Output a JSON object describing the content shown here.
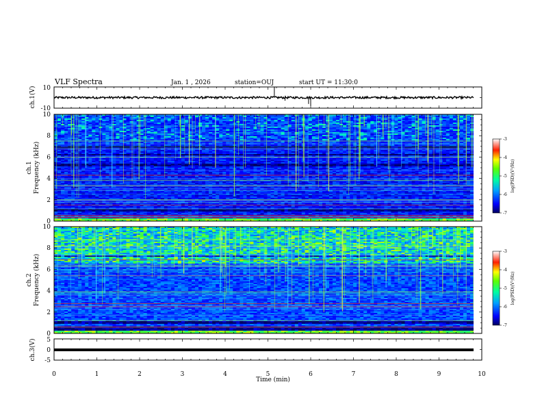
{
  "header": {
    "title": "VLF Spectra",
    "date": "Jan. 1 , 2026",
    "station": "station=OUJ",
    "start": "start UT = 11:30:0"
  },
  "chart_data": [
    {
      "type": "line",
      "name": "ch1-waveform",
      "ylabel": "ch.1(V)",
      "ylim": [
        -10,
        10
      ],
      "ytick_labels": [
        "10",
        "-10"
      ],
      "baseline": 0,
      "noise_amplitude": 1,
      "spikes": [
        {
          "t": 5.15,
          "value": 10
        },
        {
          "t": 5.4,
          "value": -3
        },
        {
          "t": 5.95,
          "value": -6
        },
        {
          "t": 6.0,
          "value": -8
        }
      ]
    },
    {
      "type": "heatmap",
      "name": "ch1-spectrogram",
      "ylabel_line1": "ch.1",
      "ylabel_line2": "Frequency (kHz)",
      "ylim": [
        0,
        10
      ],
      "ytick_labels": [
        "0",
        "2",
        "4",
        "6",
        "8",
        "10"
      ],
      "xlim": [
        0,
        9.8
      ],
      "colorbar": {
        "label": "log(PSD)(V²/Hz)",
        "range": [
          -7,
          -3
        ],
        "tick_labels": [
          "-3",
          "-4",
          "-5",
          "-6",
          "-7"
        ]
      },
      "dark_bands_khz": [
        [
          5.1,
          5.4
        ],
        [
          6.2,
          6.3
        ],
        [
          6.8,
          7.1
        ],
        [
          0.9,
          1.1
        ]
      ],
      "red_lines_khz": [
        0.35,
        0.55,
        1.5,
        3.3,
        4.3
      ],
      "green_lines_khz": [
        6.0,
        7.5,
        2.0,
        3.8,
        0.4
      ]
    },
    {
      "type": "heatmap",
      "name": "ch2-spectrogram",
      "ylabel_line1": "ch.2",
      "ylabel_line2": "Frequency (kHz)",
      "ylim": [
        0,
        10
      ],
      "ytick_labels": [
        "0",
        "2",
        "4",
        "6",
        "8",
        "10"
      ],
      "xlim": [
        0,
        9.8
      ],
      "colorbar": {
        "label": "log(PSD)(V²/Hz)",
        "range": [
          -7,
          -3
        ],
        "tick_labels": [
          "-3",
          "-4",
          "-5",
          "-6",
          "-7"
        ]
      },
      "dark_bands_khz": [
        [
          0.3,
          0.6
        ],
        [
          0.9,
          1.1
        ],
        [
          7.2,
          7.3
        ]
      ],
      "red_lines_khz": [
        6.9,
        5.4,
        2.8,
        2.5,
        0.6
      ],
      "green_lines_khz": [
        8.8,
        8.2,
        6.3,
        3.9,
        1.2
      ]
    },
    {
      "type": "line",
      "name": "ch3-waveform",
      "ylabel": "ch.3(V)",
      "ylim": [
        -5,
        5
      ],
      "ytick_labels": [
        "5",
        "0",
        "-5"
      ],
      "baseline": 0
    }
  ],
  "xaxis": {
    "label": "Time (min)",
    "range": [
      0,
      10
    ],
    "tick_labels": [
      "0",
      "1",
      "2",
      "3",
      "4",
      "5",
      "6",
      "7",
      "8",
      "9",
      "10"
    ]
  }
}
